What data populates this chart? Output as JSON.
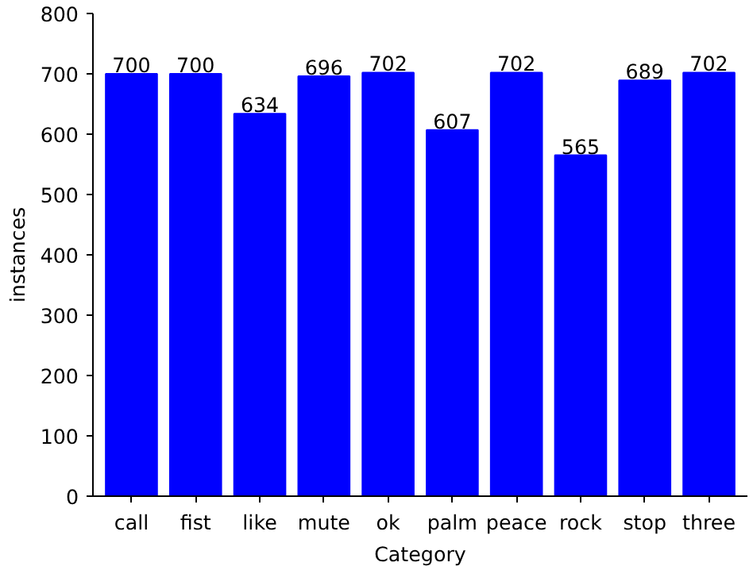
{
  "chart_data": {
    "type": "bar",
    "xlabel": "Category",
    "ylabel": "instances",
    "categories": [
      "call",
      "fist",
      "like",
      "mute",
      "ok",
      "palm",
      "peace",
      "rock",
      "stop",
      "three"
    ],
    "values": [
      700,
      700,
      634,
      696,
      702,
      607,
      702,
      565,
      689,
      702
    ],
    "color": "#0000ff",
    "ylim": [
      0,
      800
    ],
    "yticks": [
      0,
      100,
      200,
      300,
      400,
      500,
      600,
      700,
      800
    ],
    "data_labels": true,
    "grid": false
  }
}
